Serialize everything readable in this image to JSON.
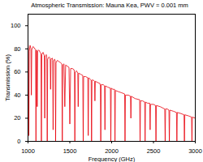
{
  "chart_data": {
    "type": "line",
    "title": "Atmospheric Transmission: Mauna Kea, PWV = 0.001 mm",
    "x_label": "Frequency (GHz)",
    "y_label": "Transmission (%)",
    "color": "#e8000b",
    "xlim": [
      1000,
      3000
    ],
    "xticks": [
      1000,
      1500,
      2000,
      2500,
      3000
    ],
    "ylim": [
      0,
      110
    ],
    "yticks": [
      0,
      20,
      40,
      60,
      80,
      100
    ],
    "grid": false,
    "x": [
      1000,
      1005,
      1010,
      1015,
      1025,
      1035,
      1040,
      1045,
      1060,
      1075,
      1090,
      1095,
      1100,
      1105,
      1110,
      1115,
      1130,
      1145,
      1155,
      1160,
      1165,
      1180,
      1195,
      1200,
      1205,
      1220,
      1225,
      1230,
      1235,
      1250,
      1265,
      1270,
      1275,
      1290,
      1295,
      1300,
      1305,
      1320,
      1325,
      1330,
      1335,
      1350,
      1370,
      1390,
      1405,
      1410,
      1415,
      1430,
      1440,
      1450,
      1470,
      1490,
      1500,
      1510,
      1530,
      1550,
      1555,
      1560,
      1565,
      1580,
      1595,
      1600,
      1605,
      1630,
      1655,
      1660,
      1665,
      1690,
      1715,
      1720,
      1725,
      1740,
      1755,
      1760,
      1765,
      1780,
      1795,
      1800,
      1805,
      1830,
      1860,
      1865,
      1870,
      1875,
      1900,
      1915,
      1920,
      1925,
      1950,
      1985,
      1990,
      1995,
      2015,
      2035,
      2040,
      2045,
      2080,
      2120,
      2155,
      2160,
      2165,
      2200,
      2225,
      2230,
      2235,
      2280,
      2335,
      2340,
      2345,
      2370,
      2395,
      2400,
      2405,
      2430,
      2455,
      2460,
      2465,
      2500,
      2525,
      2530,
      2535,
      2580,
      2635,
      2640,
      2645,
      2665,
      2685,
      2690,
      2695,
      2740,
      2775,
      2780,
      2785,
      2830,
      2865,
      2870,
      2875,
      2920,
      2955,
      2960,
      2965,
      3000
    ],
    "values": [
      84,
      80,
      5,
      78,
      83,
      80,
      40,
      79,
      82,
      81,
      79,
      0,
      78,
      79,
      30,
      78,
      79,
      77,
      76,
      0,
      75,
      77,
      74,
      20,
      74,
      75,
      72,
      0,
      71,
      73,
      72,
      45,
      71,
      72,
      70,
      10,
      70,
      71,
      69,
      0,
      68,
      70,
      69,
      68,
      67,
      0,
      66,
      67,
      30,
      66,
      65,
      64,
      15,
      63,
      63,
      62,
      60,
      0,
      60,
      61,
      59,
      30,
      59,
      58,
      57,
      0,
      56,
      56,
      55,
      5,
      55,
      54,
      53,
      0,
      53,
      53,
      52,
      35,
      52,
      51,
      50,
      48,
      0,
      49,
      49,
      48,
      10,
      48,
      47,
      46,
      0,
      46,
      45,
      45,
      0,
      44,
      43,
      42,
      41,
      0,
      40,
      40,
      39,
      20,
      39,
      37,
      36,
      0,
      35,
      35,
      34,
      0,
      34,
      33,
      33,
      10,
      32,
      32,
      31,
      0,
      31,
      30,
      28,
      0,
      28,
      28,
      27,
      0,
      27,
      26,
      25,
      0,
      25,
      24,
      23,
      0,
      23,
      22,
      21,
      0,
      21,
      20
    ]
  }
}
